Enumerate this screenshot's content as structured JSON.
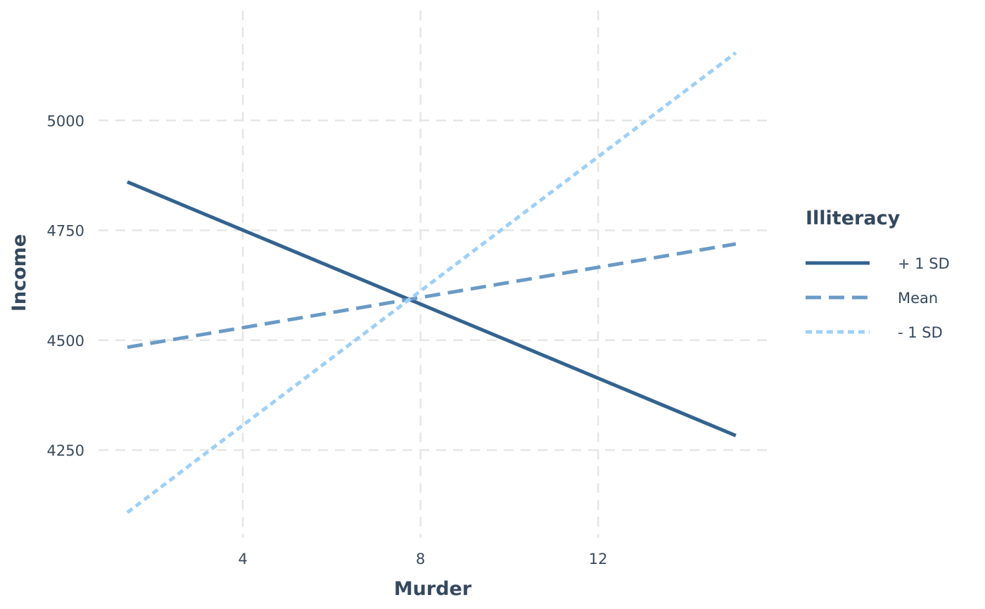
{
  "chart_data": {
    "type": "line",
    "xlabel": "Murder",
    "ylabel": "Income",
    "xlim": [
      0.75,
      15.8
    ],
    "ylim": [
      4050,
      5250
    ],
    "xticks": [
      4,
      8,
      12
    ],
    "yticks": [
      4250,
      4500,
      4750,
      5000
    ],
    "xtick_labels": [
      "4",
      "8",
      "12"
    ],
    "ytick_labels": [
      "4250",
      "4500",
      "4750",
      "5000"
    ],
    "grid": true,
    "legend": {
      "title": "Illiteracy",
      "placement": "right"
    },
    "series": [
      {
        "name": "+ 1 SD",
        "color": "#33638f",
        "dash": "solid",
        "x": [
          1.4,
          15.1
        ],
        "y": [
          4860,
          4283
        ]
      },
      {
        "name": "Mean",
        "color": "#6a9ac6",
        "dash": "dashed",
        "x": [
          1.4,
          15.1
        ],
        "y": [
          4484,
          4719
        ]
      },
      {
        "name": "- 1 SD",
        "color": "#9dd0f8",
        "dash": "dotted",
        "x": [
          1.4,
          15.1
        ],
        "y": [
          4108,
          5154
        ]
      }
    ]
  }
}
